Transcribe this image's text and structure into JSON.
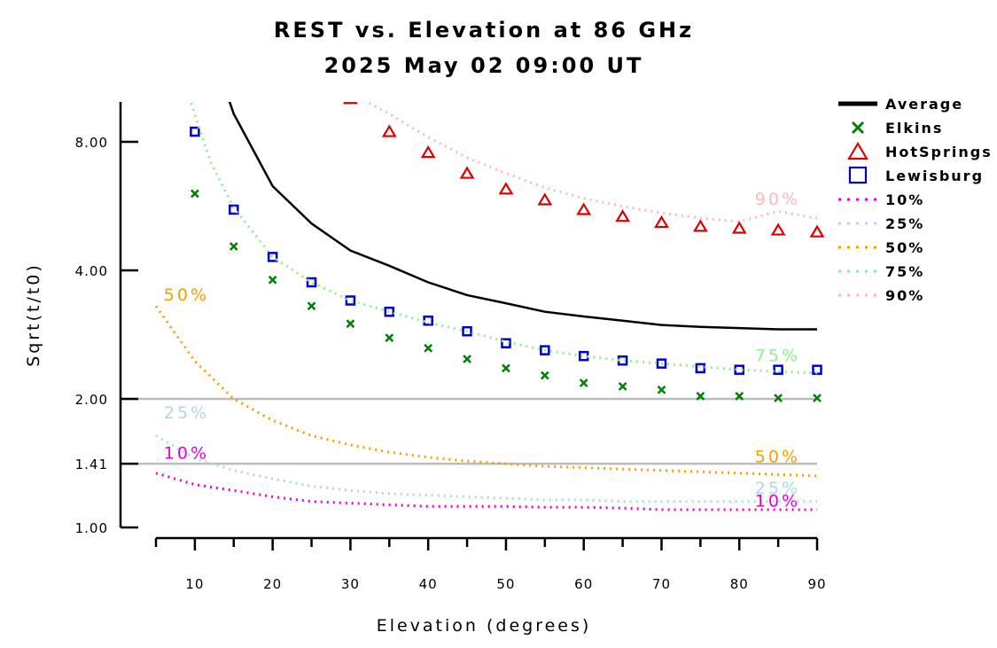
{
  "chart_data": {
    "type": "line",
    "title": "REST vs. Elevation at 86 GHz",
    "subtitle": "2025 May 02 09:00 UT",
    "xlabel": "Elevation (degrees)",
    "ylabel": "Sqrt(t/t0)",
    "xlim": [
      5,
      90
    ],
    "ylim": [
      1.0,
      10.0
    ],
    "y_scale": "log",
    "x_ticks": [
      10,
      20,
      30,
      40,
      50,
      60,
      70,
      80,
      90
    ],
    "x_tick_labels": [
      "10",
      "20",
      "30",
      "40",
      "50",
      "60",
      "70",
      "80",
      "90"
    ],
    "y_ticks": [
      1.0,
      1.41,
      2.0,
      4.0,
      8.0
    ],
    "y_tick_labels": [
      "1.00",
      "1.41",
      "2.00",
      "4.00",
      "8.00"
    ],
    "reference_lines": [
      1.41,
      2.0
    ],
    "legend_placement": "right",
    "series": [
      {
        "name": "Average",
        "style": "line",
        "color": "#000000",
        "x": [
          14,
          15,
          20,
          25,
          30,
          35,
          40,
          45,
          50,
          55,
          60,
          65,
          70,
          75,
          80,
          85,
          90
        ],
        "y": [
          10.5,
          9.3,
          6.3,
          5.15,
          4.45,
          4.1,
          3.75,
          3.5,
          3.35,
          3.2,
          3.12,
          3.05,
          2.98,
          2.95,
          2.93,
          2.91,
          2.91
        ]
      },
      {
        "name": "Elkins",
        "style": "x",
        "color": "#008000",
        "x": [
          10,
          15,
          20,
          25,
          30,
          35,
          40,
          45,
          50,
          55,
          60,
          65,
          70,
          75,
          80,
          85,
          90
        ],
        "y": [
          6.05,
          4.55,
          3.8,
          3.3,
          3.0,
          2.78,
          2.63,
          2.48,
          2.36,
          2.27,
          2.18,
          2.14,
          2.1,
          2.03,
          2.03,
          2.01,
          2.01
        ]
      },
      {
        "name": "HotSprings",
        "style": "triangle",
        "color": "#dd0000",
        "x": [
          30,
          35,
          40,
          45,
          50,
          55,
          60,
          65,
          70,
          75,
          80,
          85,
          90
        ],
        "y": [
          10.1,
          8.45,
          7.55,
          6.75,
          6.2,
          5.85,
          5.55,
          5.35,
          5.18,
          5.07,
          5.02,
          4.97,
          4.92
        ]
      },
      {
        "name": "Lewisburg",
        "style": "square",
        "color": "#0000cc",
        "x": [
          10,
          15,
          20,
          25,
          30,
          35,
          40,
          45,
          50,
          55,
          60,
          65,
          70,
          75,
          80,
          85,
          90
        ],
        "y": [
          8.45,
          5.55,
          4.3,
          3.75,
          3.4,
          3.2,
          3.05,
          2.88,
          2.7,
          2.6,
          2.52,
          2.46,
          2.42,
          2.36,
          2.34,
          2.34,
          2.34
        ]
      },
      {
        "name": "10%",
        "style": "dotted",
        "color": "#ee00cc",
        "x": [
          5,
          10,
          15,
          20,
          25,
          30,
          35,
          40,
          45,
          50,
          55,
          60,
          65,
          70,
          75,
          80,
          85,
          90
        ],
        "y": [
          1.34,
          1.26,
          1.22,
          1.18,
          1.15,
          1.14,
          1.13,
          1.12,
          1.12,
          1.12,
          1.115,
          1.115,
          1.11,
          1.1,
          1.1,
          1.1,
          1.1,
          1.1
        ]
      },
      {
        "name": "25%",
        "style": "dotted",
        "color": "#add8e6",
        "x": [
          5,
          10,
          15,
          20,
          25,
          30,
          35,
          40,
          45,
          50,
          55,
          60,
          65,
          70,
          75,
          80,
          85,
          90
        ],
        "y": [
          1.64,
          1.45,
          1.36,
          1.3,
          1.25,
          1.22,
          1.2,
          1.19,
          1.18,
          1.17,
          1.16,
          1.16,
          1.15,
          1.15,
          1.15,
          1.15,
          1.15,
          1.15
        ]
      },
      {
        "name": "50%",
        "style": "dotted",
        "color": "#f0a000",
        "x": [
          5,
          10,
          15,
          20,
          25,
          30,
          35,
          40,
          45,
          50,
          55,
          60,
          65,
          70,
          75,
          80,
          85,
          90
        ],
        "y": [
          3.3,
          2.45,
          2.0,
          1.78,
          1.64,
          1.56,
          1.5,
          1.46,
          1.43,
          1.41,
          1.39,
          1.38,
          1.37,
          1.36,
          1.35,
          1.34,
          1.33,
          1.32
        ]
      },
      {
        "name": "75%",
        "style": "dotted",
        "color": "#90ee90",
        "x": [
          9,
          12,
          15,
          20,
          25,
          30,
          35,
          40,
          45,
          50,
          55,
          60,
          65,
          70,
          75,
          80,
          85,
          90
        ],
        "y": [
          10.5,
          7.2,
          5.6,
          4.3,
          3.75,
          3.4,
          3.2,
          3.02,
          2.88,
          2.72,
          2.6,
          2.52,
          2.46,
          2.42,
          2.38,
          2.34,
          2.32,
          2.3
        ]
      },
      {
        "name": "90%",
        "style": "dotted",
        "color": "#ffb6c1",
        "x": [
          28,
          30,
          35,
          40,
          45,
          50,
          55,
          60,
          65,
          70,
          75,
          80,
          85,
          90
        ],
        "y": [
          10.6,
          10.4,
          9.3,
          8.2,
          7.35,
          6.75,
          6.25,
          5.9,
          5.65,
          5.45,
          5.3,
          5.2,
          5.5,
          5.3
        ]
      }
    ],
    "percent_annotations": [
      {
        "text": "50%",
        "color": "#f0a000",
        "x": 6,
        "y": 3.4
      },
      {
        "text": "25%",
        "color": "#add8e6",
        "x": 6,
        "y": 1.8
      },
      {
        "text": "10%",
        "color": "#ee00cc",
        "x": 6,
        "y": 1.45
      },
      {
        "text": "90%",
        "color": "#ffb6c1",
        "x": 82,
        "y": 5.7
      },
      {
        "text": "75%",
        "color": "#90ee90",
        "x": 82,
        "y": 2.45
      },
      {
        "text": "50%",
        "color": "#f0a000",
        "x": 82,
        "y": 1.42
      },
      {
        "text": "25%",
        "color": "#add8e6",
        "x": 82,
        "y": 1.2
      },
      {
        "text": "10%",
        "color": "#ee00cc",
        "x": 82,
        "y": 1.12
      }
    ]
  }
}
